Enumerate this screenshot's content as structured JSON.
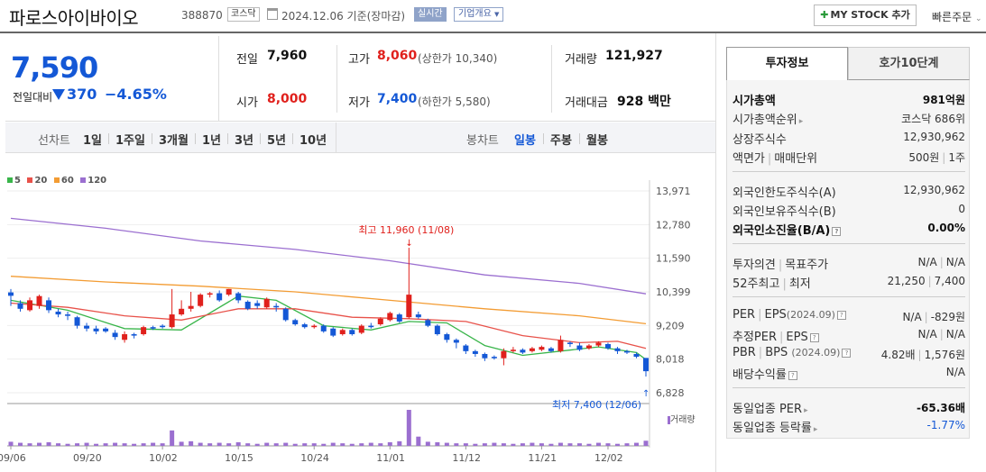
{
  "header": {
    "company_name": "파로스아이바이오",
    "code": "388870",
    "market": "코스닥",
    "date": "2024.12.06",
    "date_basis": "기준(장마감)",
    "realtime": "실시간",
    "company_overview": "기업개요",
    "mystock_button": "MY STOCK 추가",
    "quick_order": "빠른주문"
  },
  "price": {
    "current": "7,590",
    "change_label": "전일대비",
    "change_value": "370",
    "change_pct": "−4.65%",
    "direction": "down"
  },
  "stats": {
    "prev_close_label": "전일",
    "prev_close": "7,960",
    "high_label": "고가",
    "high": "8,060",
    "upper_limit_label": "(상한가",
    "upper_limit": "10,340)",
    "volume_label": "거래량",
    "volume": "121,927",
    "open_label": "시가",
    "open": "8,000",
    "low_label": "저가",
    "low": "7,400",
    "lower_limit_label": "(하한가",
    "lower_limit": "5,580)",
    "amount_label": "거래대금",
    "amount": "928",
    "amount_unit": "백만"
  },
  "period_bar": {
    "line_label": "선차트",
    "periods": [
      "1일",
      "1주일",
      "3개월",
      "1년",
      "3년",
      "5년",
      "10년"
    ],
    "candle_label": "봉차트",
    "candles": [
      "일봉",
      "주봉",
      "월봉"
    ],
    "selected_candle": "일봉"
  },
  "legend": [
    "5",
    "20",
    "60",
    "120"
  ],
  "legend_colors": [
    "#39b54a",
    "#e8524a",
    "#f39c33",
    "#9b6fd0"
  ],
  "volume_label": "거래량",
  "tabs": [
    "투자정보",
    "호가10단계"
  ],
  "info": {
    "market_cap_label": "시가총액",
    "market_cap": "981억원",
    "market_cap_rank_label": "시가총액순위",
    "market_cap_rank": "코스닥 686위",
    "shares_label": "상장주식수",
    "shares": "12,930,962",
    "par_label": "액면가",
    "unit_label": "매매단위",
    "par": "500원",
    "unit": "1주",
    "foreign_limit_label": "외국인한도주식수(A)",
    "foreign_limit": "12,930,962",
    "foreign_hold_label": "외국인보유주식수(B)",
    "foreign_hold": "0",
    "foreign_ratio_label": "외국인소진율(B/A)",
    "foreign_ratio": "0.00%",
    "opinion_label": "투자의견",
    "target_label": "목표주가",
    "opinion": "N/A",
    "target": "N/A",
    "w52_high_label": "52주최고",
    "w52_low_label": "최저",
    "w52_high": "21,250",
    "w52_low": "7,400",
    "per_label": "PER",
    "eps_label": "EPS",
    "per_date": "(2024.09)",
    "per": "N/A",
    "eps": "-829원",
    "est_per_label": "추정PER",
    "est_eps_label": "EPS",
    "est_per": "N/A",
    "est_eps": "N/A",
    "pbr_label": "PBR",
    "bps_label": "BPS",
    "pbr_date": "(2024.09)",
    "pbr": "4.82배",
    "bps": "1,576원",
    "div_label": "배당수익률",
    "div": "N/A",
    "ind_per_label": "동일업종 PER",
    "ind_per": "-65.36배",
    "ind_rate_label": "동일업종 등락률",
    "ind_rate": "-1.77%"
  },
  "chart_data": {
    "type": "candlestick",
    "y_ticks": [
      13971,
      12780,
      11590,
      10399,
      9209,
      8018,
      6828
    ],
    "y_tick_labels": [
      "13,971",
      "12,780",
      "11,590",
      "10,399",
      "9,209",
      "8,018",
      "6,828"
    ],
    "x_tick_labels": [
      "09/06",
      "09/20",
      "10/02",
      "10/15",
      "10/24",
      "11/01",
      "11/12",
      "11/21",
      "12/02"
    ],
    "annotations": {
      "high": "최고 11,960 (11/08)",
      "low": "최저 7,400 (12/06)"
    },
    "candles": [
      [
        10380,
        10260,
        10500,
        9900
      ],
      [
        10000,
        9800,
        10100,
        9700
      ],
      [
        9750,
        10100,
        10200,
        9700
      ],
      [
        9900,
        10250,
        10300,
        9800
      ],
      [
        10100,
        9750,
        10200,
        9650
      ],
      [
        9700,
        9600,
        9800,
        9500
      ],
      [
        9600,
        9550,
        9700,
        9400
      ],
      [
        9500,
        9200,
        9550,
        9100
      ],
      [
        9200,
        9100,
        9300,
        9000
      ],
      [
        9100,
        9000,
        9200,
        8900
      ],
      [
        9100,
        9000,
        9150,
        8950
      ],
      [
        8950,
        8800,
        9050,
        8700
      ],
      [
        8700,
        8900,
        9000,
        8600
      ],
      [
        8900,
        8850,
        8950,
        8750
      ],
      [
        8900,
        9150,
        9200,
        8850
      ],
      [
        9150,
        9100,
        9200,
        9050
      ],
      [
        9200,
        9150,
        9250,
        9100
      ],
      [
        9150,
        9600,
        10500,
        9100
      ],
      [
        9600,
        9800,
        10100,
        9550
      ],
      [
        9800,
        9900,
        10400,
        9700
      ],
      [
        9900,
        10300,
        10350,
        9850
      ],
      [
        10300,
        10350,
        10400,
        10200
      ],
      [
        10350,
        10100,
        10450,
        10050
      ],
      [
        10300,
        10500,
        10500,
        10250
      ],
      [
        10350,
        10100,
        10400,
        10000
      ],
      [
        10050,
        9800,
        10100,
        9750
      ],
      [
        10000,
        9900,
        10100,
        9800
      ],
      [
        9850,
        10150,
        10200,
        9800
      ],
      [
        9900,
        9850,
        10000,
        9700
      ],
      [
        9800,
        9400,
        9850,
        9350
      ],
      [
        9400,
        9250,
        9450,
        9200
      ],
      [
        9250,
        9150,
        9300,
        9100
      ],
      [
        9150,
        9200,
        9250,
        9100
      ],
      [
        9200,
        9000,
        9250,
        8950
      ],
      [
        9100,
        8850,
        9150,
        8800
      ],
      [
        8900,
        9050,
        9100,
        8850
      ],
      [
        9050,
        8900,
        9100,
        8850
      ],
      [
        8950,
        9200,
        9250,
        8900
      ],
      [
        9200,
        9150,
        9300,
        9100
      ],
      [
        9250,
        9450,
        9500,
        9200
      ],
      [
        9400,
        9650,
        9700,
        9350
      ],
      [
        9600,
        9350,
        9650,
        9300
      ],
      [
        9500,
        10300,
        11960,
        9450
      ],
      [
        9600,
        9500,
        9700,
        9450
      ],
      [
        9400,
        9200,
        9450,
        9150
      ],
      [
        9200,
        8900,
        9250,
        8850
      ],
      [
        8900,
        8700,
        8950,
        8600
      ],
      [
        8700,
        8600,
        8750,
        8400
      ],
      [
        8500,
        8300,
        8550,
        8200
      ],
      [
        8300,
        8200,
        8350,
        8100
      ],
      [
        8200,
        8050,
        8250,
        7950
      ],
      [
        8100,
        8050,
        8150,
        8000
      ],
      [
        8050,
        8300,
        8400,
        7800
      ],
      [
        8300,
        8350,
        8450,
        8250
      ],
      [
        8350,
        8250,
        8400,
        8200
      ],
      [
        8300,
        8400,
        8450,
        8250
      ],
      [
        8350,
        8450,
        8500,
        8300
      ],
      [
        8400,
        8300,
        8450,
        8250
      ],
      [
        8300,
        8700,
        8850,
        8250
      ],
      [
        8600,
        8550,
        8650,
        8450
      ],
      [
        8500,
        8350,
        8600,
        8300
      ],
      [
        8400,
        8500,
        8550,
        8350
      ],
      [
        8500,
        8600,
        8650,
        8450
      ],
      [
        8550,
        8400,
        8600,
        8350
      ],
      [
        8400,
        8300,
        8450,
        8200
      ],
      [
        8300,
        8250,
        8350,
        8200
      ],
      [
        8200,
        8100,
        8250,
        8050
      ],
      [
        8060,
        7590,
        8060,
        7400
      ]
    ],
    "ma": {
      "5": [
        [
          0,
          10100
        ],
        [
          6,
          9750
        ],
        [
          12,
          9100
        ],
        [
          18,
          9050
        ],
        [
          24,
          10250
        ],
        [
          28,
          10100
        ],
        [
          33,
          9200
        ],
        [
          38,
          9050
        ],
        [
          42,
          9350
        ],
        [
          46,
          9300
        ],
        [
          50,
          8500
        ],
        [
          54,
          8150
        ],
        [
          58,
          8300
        ],
        [
          62,
          8450
        ],
        [
          66,
          8250
        ],
        [
          67,
          8000
        ]
      ],
      "20": [
        [
          0,
          10000
        ],
        [
          6,
          9850
        ],
        [
          12,
          9550
        ],
        [
          18,
          9400
        ],
        [
          24,
          9800
        ],
        [
          30,
          9800
        ],
        [
          36,
          9500
        ],
        [
          42,
          9450
        ],
        [
          48,
          9350
        ],
        [
          54,
          8850
        ],
        [
          60,
          8600
        ],
        [
          64,
          8650
        ],
        [
          67,
          8400
        ]
      ],
      "60": [
        [
          0,
          10950
        ],
        [
          10,
          10750
        ],
        [
          20,
          10600
        ],
        [
          30,
          10400
        ],
        [
          40,
          10100
        ],
        [
          50,
          9800
        ],
        [
          60,
          9550
        ],
        [
          67,
          9270
        ]
      ],
      "120": [
        [
          0,
          13000
        ],
        [
          10,
          12650
        ],
        [
          20,
          12200
        ],
        [
          30,
          11900
        ],
        [
          40,
          11500
        ],
        [
          50,
          11000
        ],
        [
          60,
          10700
        ],
        [
          67,
          10330
        ]
      ]
    },
    "volume": [
      8,
      6,
      5,
      6,
      7,
      5,
      4,
      5,
      6,
      4,
      5,
      6,
      5,
      4,
      5,
      6,
      5,
      30,
      8,
      9,
      6,
      5,
      6,
      5,
      7,
      5,
      4,
      6,
      5,
      6,
      4,
      5,
      5,
      4,
      6,
      5,
      4,
      5,
      6,
      5,
      7,
      9,
      70,
      18,
      8,
      7,
      6,
      5,
      5,
      4,
      5,
      6,
      5,
      4,
      5,
      6,
      5,
      4,
      6,
      5,
      5,
      4,
      6,
      5,
      4,
      5,
      6,
      10
    ]
  }
}
